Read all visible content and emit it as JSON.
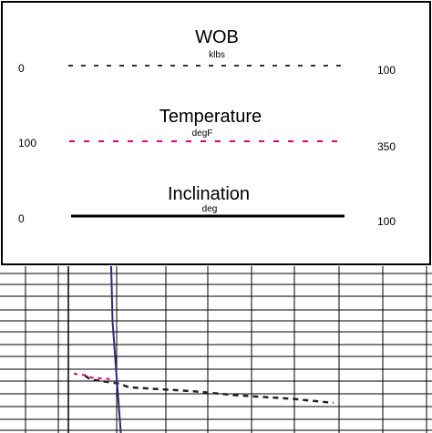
{
  "chart_data": {
    "type": "line",
    "title": "",
    "header": {
      "tracks": [
        {
          "name": "WOB",
          "unit": "klbs",
          "min": "0",
          "max": "100",
          "line_style": "dashed",
          "color": "#222222"
        },
        {
          "name": "Temperature",
          "unit": "degF",
          "min": "100",
          "max": "350",
          "line_style": "dashed",
          "color": "#e0007a"
        },
        {
          "name": "Inclination",
          "unit": "deg",
          "min": "0",
          "max": "100",
          "line_style": "solid",
          "color": "#000000"
        }
      ]
    },
    "grid": true,
    "series": [
      {
        "name": "WOB",
        "units": "klbs",
        "values": [
          6,
          8,
          18,
          22,
          45,
          60,
          82,
          96
        ]
      },
      {
        "name": "Temperature",
        "units": "degF",
        "values": [
          105,
          115,
          118,
          122,
          140
        ]
      },
      {
        "name": "Inclination",
        "units": "deg",
        "values": [
          15.5,
          16,
          17.5,
          19
        ]
      }
    ]
  }
}
